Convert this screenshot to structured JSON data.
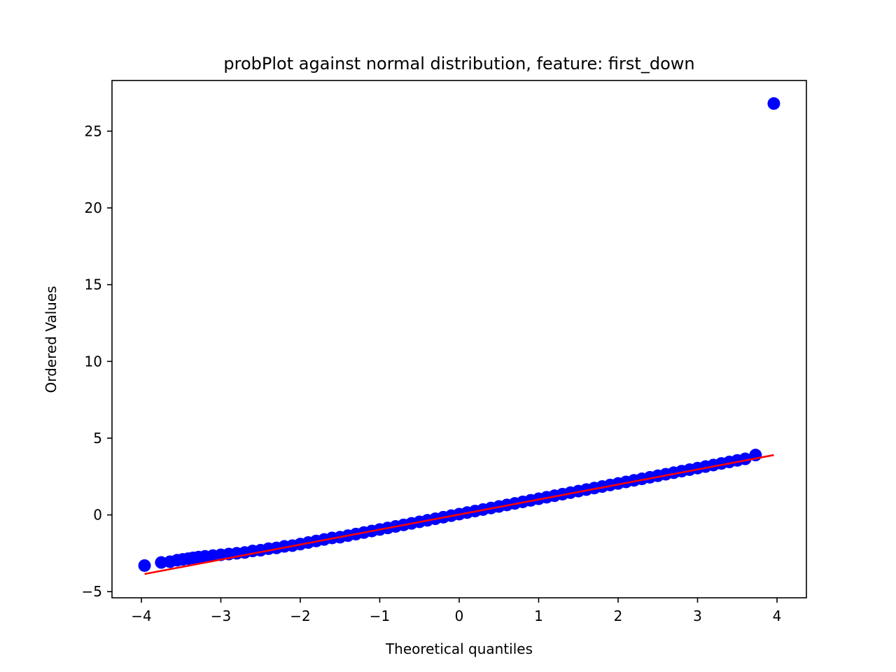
{
  "chart_data": {
    "type": "scatter",
    "title": "probPlot against normal distribution, feature: first_down",
    "xlabel": "Theoretical quantiles",
    "ylabel": "Ordered Values",
    "xlim": [
      -4.37,
      4.37
    ],
    "ylim": [
      -5.4,
      28.3
    ],
    "xticks": [
      -4,
      -3,
      -2,
      -1,
      0,
      1,
      2,
      3,
      4
    ],
    "xtick_labels": [
      "−4",
      "−3",
      "−2",
      "−1",
      "0",
      "1",
      "2",
      "3",
      "4"
    ],
    "yticks": [
      -5,
      0,
      5,
      10,
      15,
      20,
      25
    ],
    "ytick_labels": [
      "−5",
      "0",
      "5",
      "10",
      "15",
      "20",
      "25"
    ],
    "grid": false,
    "legend": "none",
    "series": [
      {
        "kind": "scatter",
        "color": "#0000ff",
        "x": [
          -3.96,
          -3.75,
          -3.64,
          -3.55,
          -3.48,
          -3.41,
          -3.35,
          -3.28,
          -3.2,
          -3.1,
          -3.0,
          -2.9,
          -2.8,
          -2.7,
          -2.6,
          -2.5,
          -2.4,
          -2.3,
          -2.2,
          -2.1,
          -2.0,
          -1.9,
          -1.8,
          -1.7,
          -1.6,
          -1.5,
          -1.4,
          -1.3,
          -1.2,
          -1.1,
          -1.0,
          -0.9,
          -0.8,
          -0.7,
          -0.6,
          -0.5,
          -0.4,
          -0.3,
          -0.2,
          -0.1,
          0.0,
          0.1,
          0.2,
          0.3,
          0.4,
          0.5,
          0.6,
          0.7,
          0.8,
          0.9,
          1.0,
          1.1,
          1.2,
          1.3,
          1.4,
          1.5,
          1.6,
          1.7,
          1.8,
          1.9,
          2.0,
          2.1,
          2.2,
          2.3,
          2.4,
          2.5,
          2.6,
          2.7,
          2.8,
          2.9,
          3.0,
          3.1,
          3.2,
          3.3,
          3.4,
          3.5,
          3.6,
          3.73,
          3.96
        ],
        "y": [
          -3.3,
          -3.1,
          -3.05,
          -2.95,
          -2.9,
          -2.85,
          -2.8,
          -2.75,
          -2.7,
          -2.65,
          -2.6,
          -2.55,
          -2.5,
          -2.45,
          -2.35,
          -2.3,
          -2.2,
          -2.15,
          -2.05,
          -2.0,
          -1.9,
          -1.8,
          -1.7,
          -1.6,
          -1.5,
          -1.45,
          -1.35,
          -1.25,
          -1.15,
          -1.05,
          -0.95,
          -0.85,
          -0.75,
          -0.65,
          -0.55,
          -0.45,
          -0.35,
          -0.25,
          -0.15,
          -0.05,
          0.05,
          0.15,
          0.25,
          0.35,
          0.45,
          0.55,
          0.65,
          0.75,
          0.85,
          0.95,
          1.05,
          1.15,
          1.25,
          1.35,
          1.45,
          1.55,
          1.65,
          1.75,
          1.85,
          1.95,
          2.05,
          2.15,
          2.25,
          2.35,
          2.45,
          2.55,
          2.65,
          2.75,
          2.85,
          2.95,
          3.05,
          3.15,
          3.25,
          3.35,
          3.45,
          3.55,
          3.65,
          3.9,
          26.8
        ]
      },
      {
        "kind": "line",
        "color": "#ff0000",
        "x": [
          -3.96,
          3.96
        ],
        "y": [
          -3.85,
          3.9
        ]
      }
    ]
  }
}
